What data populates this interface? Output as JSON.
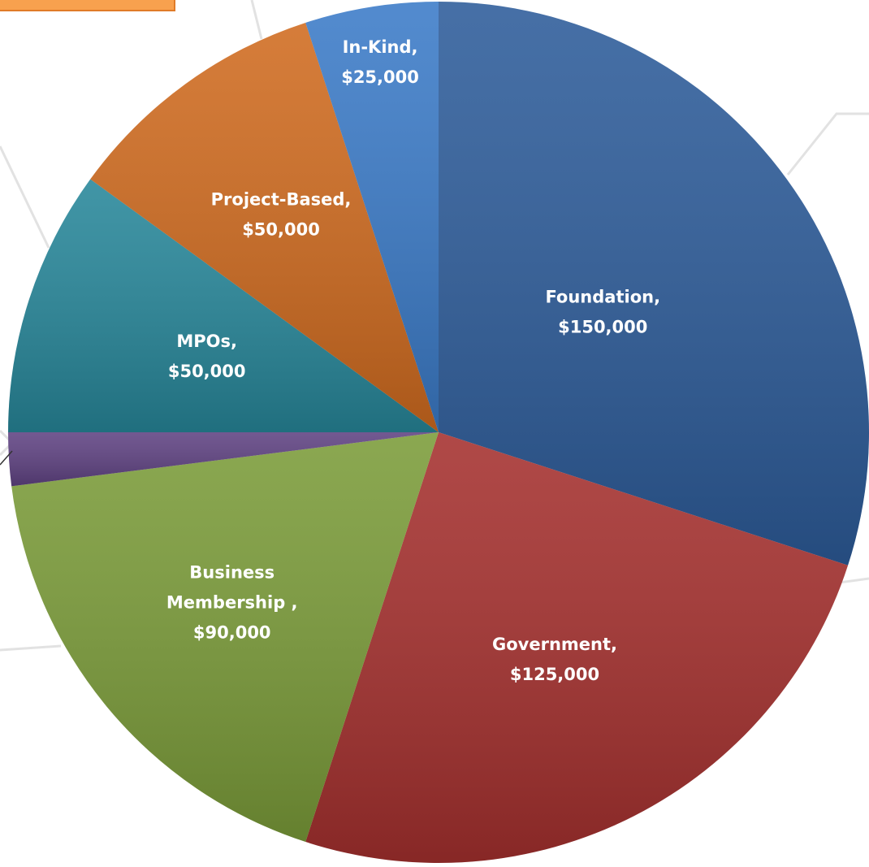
{
  "chart_data": {
    "type": "pie",
    "values": [
      150000,
      125000,
      90000,
      10000,
      50000,
      50000,
      25000
    ],
    "value_labels": [
      [
        "Foundation,",
        "$150,000"
      ],
      [
        "Government,",
        "$125,000"
      ],
      [
        "Business",
        "Membership ,",
        "$90,000"
      ],
      null,
      [
        "MPOs,",
        "$50,000"
      ],
      [
        "Project-Based,",
        "$50,000"
      ],
      [
        "In-Kind,",
        "$25,000"
      ]
    ],
    "colors": [
      "#2d5c9a",
      "#a5302e",
      "#7b9c39",
      "#5f4282",
      "#27879a",
      "#d06b1f",
      "#3b7bc8"
    ],
    "start_angle": 0,
    "direction": "clockwise"
  }
}
